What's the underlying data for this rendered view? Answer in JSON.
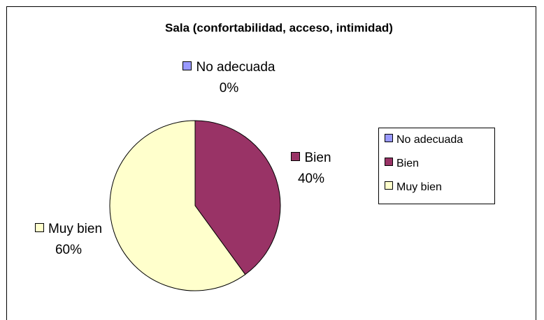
{
  "chart_data": {
    "type": "pie",
    "title": "Sala (confortabilidad, acceso, intimidad)",
    "categories": [
      "No adecuada",
      "Bien",
      "Muy bien"
    ],
    "values": [
      0,
      40,
      60
    ],
    "value_labels": [
      "0%",
      "40%",
      "60%"
    ],
    "colors": [
      "#9999ff",
      "#993366",
      "#ffffcc"
    ],
    "legend": "right"
  }
}
